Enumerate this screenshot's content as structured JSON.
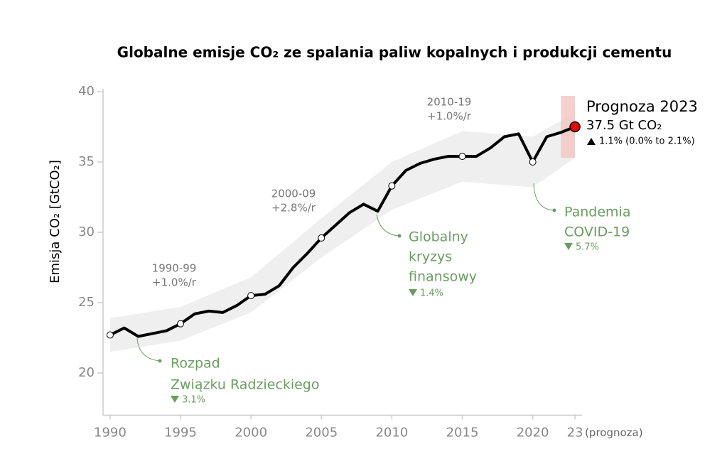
{
  "chart_data": {
    "type": "line",
    "title": "Globalne emisje CO₂ ze spalania paliw kopalnych i produkcji cementu",
    "y_label": "Emisja CO₂ [GtCO₂]",
    "x": [
      1990,
      1991,
      1992,
      1993,
      1994,
      1995,
      1996,
      1997,
      1998,
      1999,
      2000,
      2001,
      2002,
      2003,
      2004,
      2005,
      2006,
      2007,
      2008,
      2009,
      2010,
      2011,
      2012,
      2013,
      2014,
      2015,
      2016,
      2017,
      2018,
      2019,
      2020,
      2021,
      2022,
      2023
    ],
    "series": [
      {
        "name": "Emisje CO₂",
        "color": "#000000",
        "values": [
          22.7,
          23.2,
          22.6,
          22.8,
          23.0,
          23.5,
          24.2,
          24.4,
          24.3,
          24.8,
          25.5,
          25.6,
          26.2,
          27.5,
          28.5,
          29.6,
          30.5,
          31.4,
          32.0,
          31.5,
          33.3,
          34.4,
          34.9,
          35.2,
          35.4,
          35.4,
          35.4,
          36.0,
          36.8,
          37.0,
          35.0,
          36.8,
          37.1,
          37.5
        ]
      }
    ],
    "band": {
      "color": "#efefef",
      "x": [
        1990,
        1995,
        2000,
        2005,
        2010,
        2015,
        2020,
        2023
      ],
      "lower": [
        21.5,
        22.3,
        24.3,
        28.2,
        31.6,
        33.6,
        33.2,
        35.3
      ],
      "upper": [
        23.9,
        24.7,
        26.8,
        31.0,
        35.0,
        37.2,
        36.8,
        38.5
      ]
    },
    "projection_range": {
      "color": "#f2c4c0",
      "x": [
        2022,
        2023
      ],
      "values": [
        35.3,
        39.7
      ]
    },
    "xlim": [
      1989.5,
      2023.5
    ],
    "ylim": [
      17,
      40
    ],
    "xticks": [
      1990,
      1995,
      2000,
      2005,
      2010,
      2015,
      2020,
      {
        "value": 2023,
        "label": "23"
      }
    ],
    "yticks": [
      20,
      25,
      30,
      35,
      40
    ],
    "x_note": "(prognoza)",
    "periods": [
      [
        "1990-99",
        "+1.0%/r"
      ],
      [
        "2000-09",
        "+2.8%/r"
      ],
      [
        "2010-19",
        "+1.0%/r"
      ]
    ],
    "events": [
      {
        "lines": [
          "Rozpad",
          "Związku Radzieckiego"
        ],
        "change": "3.1%"
      },
      {
        "lines": [
          "Globalny",
          "kryzys",
          "finansowy"
        ],
        "change": "1.4%"
      },
      {
        "lines": [
          "Pandemia",
          "COVID-19"
        ],
        "change": "5.7%"
      }
    ],
    "forecast": {
      "title": "Prognoza 2023",
      "value": "37.5 Gt CO₂",
      "change": "1.1% (0.0% to 2.1%)"
    }
  }
}
